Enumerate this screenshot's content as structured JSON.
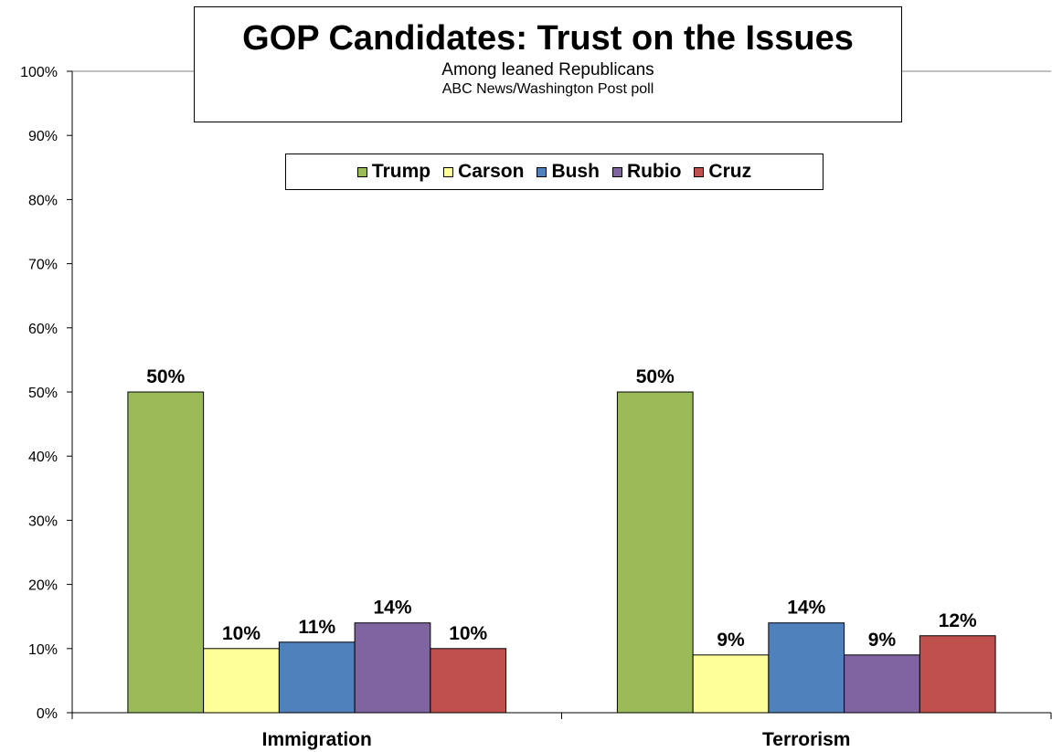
{
  "chart_data": {
    "type": "bar",
    "title": "GOP Candidates: Trust on the Issues",
    "subtitle": "Among leaned Republicans",
    "source": "ABC News/Washington  Post poll",
    "categories": [
      "Immigration",
      "Terrorism"
    ],
    "series": [
      {
        "name": "Trump",
        "color": "#9bbb59",
        "values": [
          50,
          50
        ],
        "labels": [
          "50%",
          "50%"
        ]
      },
      {
        "name": "Carson",
        "color": "#ffff99",
        "values": [
          10,
          9
        ],
        "labels": [
          "10%",
          "9%"
        ]
      },
      {
        "name": "Bush",
        "color": "#4f81bd",
        "values": [
          11,
          14
        ],
        "labels": [
          "11%",
          "14%"
        ]
      },
      {
        "name": "Rubio",
        "color": "#8064a2",
        "values": [
          14,
          9
        ],
        "labels": [
          "14%",
          "9%"
        ]
      },
      {
        "name": "Cruz",
        "color": "#c0504d",
        "values": [
          10,
          12
        ],
        "labels": [
          "10%",
          "12%"
        ]
      }
    ],
    "ylim": [
      0,
      100
    ],
    "yticks": [
      "0%",
      "10%",
      "20%",
      "30%",
      "40%",
      "50%",
      "60%",
      "70%",
      "80%",
      "90%",
      "100%"
    ],
    "legend": "top-center",
    "grid": "top line only"
  }
}
